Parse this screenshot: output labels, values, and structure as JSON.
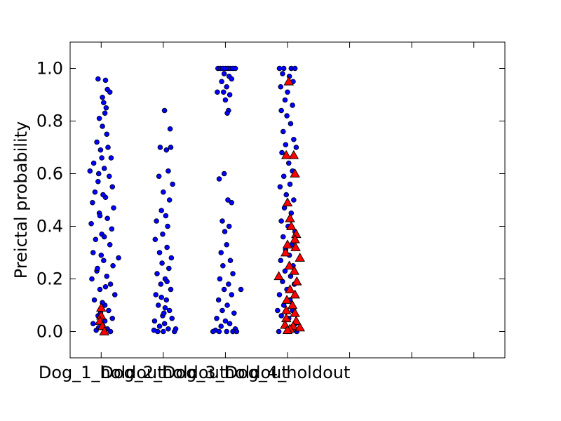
{
  "chart_data": {
    "type": "scatter",
    "title": "",
    "xlabel": "",
    "ylabel": "Preictal probability",
    "ylim": [
      -0.1,
      1.1
    ],
    "yticks": [
      0.0,
      0.2,
      0.4,
      0.6,
      0.8,
      1.0
    ],
    "ytick_labels": [
      "0.0",
      "0.2",
      "0.4",
      "0.6",
      "0.8",
      "1.0"
    ],
    "xlim": [
      0.5,
      7.5
    ],
    "categories": [
      "Dog_1_holdout",
      "Dog_2_holdout",
      "Dog_3_holdout",
      "Dog_4_holdout"
    ],
    "category_positions": [
      1,
      2,
      3,
      4
    ],
    "extra_xticks": [
      5,
      6,
      7
    ],
    "grid": false,
    "marker_colors": {
      "interictal": "#0000ff",
      "preictal": "#ff0000"
    },
    "series": [
      {
        "marker": "circle",
        "color": "#0000ff",
        "points": [
          {
            "x": 0.95,
            "y": 0.96
          },
          {
            "x": 1.07,
            "y": 0.955
          },
          {
            "x": 1.1,
            "y": 0.92
          },
          {
            "x": 1.14,
            "y": 0.91
          },
          {
            "x": 1.02,
            "y": 0.89
          },
          {
            "x": 1.04,
            "y": 0.87
          },
          {
            "x": 1.08,
            "y": 0.85
          },
          {
            "x": 0.97,
            "y": 0.81
          },
          {
            "x": 1.06,
            "y": 0.83
          },
          {
            "x": 1.02,
            "y": 0.78
          },
          {
            "x": 1.09,
            "y": 0.75
          },
          {
            "x": 0.93,
            "y": 0.72
          },
          {
            "x": 1.11,
            "y": 0.7
          },
          {
            "x": 0.99,
            "y": 0.69
          },
          {
            "x": 1.16,
            "y": 0.66
          },
          {
            "x": 0.88,
            "y": 0.64
          },
          {
            "x": 1.05,
            "y": 0.62
          },
          {
            "x": 0.82,
            "y": 0.61
          },
          {
            "x": 1.13,
            "y": 0.59
          },
          {
            "x": 0.95,
            "y": 0.57
          },
          {
            "x": 1.18,
            "y": 0.55
          },
          {
            "x": 0.9,
            "y": 0.53
          },
          {
            "x": 1.07,
            "y": 0.51
          },
          {
            "x": 0.86,
            "y": 0.49
          },
          {
            "x": 1.2,
            "y": 0.47
          },
          {
            "x": 0.97,
            "y": 0.45
          },
          {
            "x": 1.1,
            "y": 0.43
          },
          {
            "x": 0.84,
            "y": 0.41
          },
          {
            "x": 1.17,
            "y": 0.39
          },
          {
            "x": 1.01,
            "y": 0.37
          },
          {
            "x": 0.91,
            "y": 0.35
          },
          {
            "x": 1.14,
            "y": 0.33
          },
          {
            "x": 1.28,
            "y": 0.28
          },
          {
            "x": 0.87,
            "y": 0.3
          },
          {
            "x": 1.04,
            "y": 0.27
          },
          {
            "x": 1.19,
            "y": 0.25
          },
          {
            "x": 0.93,
            "y": 0.23
          },
          {
            "x": 1.09,
            "y": 0.21
          },
          {
            "x": 0.85,
            "y": 0.2
          },
          {
            "x": 1.15,
            "y": 0.18
          },
          {
            "x": 0.98,
            "y": 0.16
          },
          {
            "x": 1.22,
            "y": 0.14
          },
          {
            "x": 0.89,
            "y": 0.12
          },
          {
            "x": 1.06,
            "y": 0.1
          },
          {
            "x": 1.12,
            "y": 0.08
          },
          {
            "x": 0.95,
            "y": 0.06
          },
          {
            "x": 1.18,
            "y": 0.05
          },
          {
            "x": 0.87,
            "y": 0.03
          },
          {
            "x": 1.03,
            "y": 0.02
          },
          {
            "x": 1.1,
            "y": 0.01
          },
          {
            "x": 0.92,
            "y": 0.005
          },
          {
            "x": 1.15,
            "y": 0.0
          },
          {
            "x": 1.01,
            "y": 0.66
          },
          {
            "x": 0.96,
            "y": 0.6
          },
          {
            "x": 1.03,
            "y": 0.52
          },
          {
            "x": 0.98,
            "y": 0.44
          },
          {
            "x": 1.05,
            "y": 0.36
          },
          {
            "x": 1.0,
            "y": 0.29
          },
          {
            "x": 0.94,
            "y": 0.24
          },
          {
            "x": 1.07,
            "y": 0.17
          },
          {
            "x": 1.02,
            "y": 0.11
          },
          {
            "x": 0.99,
            "y": 0.07
          },
          {
            "x": 1.06,
            "y": 0.04
          },
          {
            "x": 0.96,
            "y": 0.015
          },
          {
            "x": 2.02,
            "y": 0.84
          },
          {
            "x": 2.11,
            "y": 0.77
          },
          {
            "x": 2.12,
            "y": 0.7
          },
          {
            "x": 1.95,
            "y": 0.7
          },
          {
            "x": 2.05,
            "y": 0.69
          },
          {
            "x": 2.08,
            "y": 0.61
          },
          {
            "x": 1.93,
            "y": 0.59
          },
          {
            "x": 2.15,
            "y": 0.56
          },
          {
            "x": 2.0,
            "y": 0.53
          },
          {
            "x": 2.1,
            "y": 0.5
          },
          {
            "x": 1.97,
            "y": 0.46
          },
          {
            "x": 2.04,
            "y": 0.44
          },
          {
            "x": 1.89,
            "y": 0.42
          },
          {
            "x": 2.07,
            "y": 0.4
          },
          {
            "x": 1.99,
            "y": 0.37
          },
          {
            "x": 1.87,
            "y": 0.35
          },
          {
            "x": 2.06,
            "y": 0.32
          },
          {
            "x": 1.94,
            "y": 0.3
          },
          {
            "x": 2.13,
            "y": 0.28
          },
          {
            "x": 1.98,
            "y": 0.26
          },
          {
            "x": 2.09,
            "y": 0.24
          },
          {
            "x": 1.9,
            "y": 0.22
          },
          {
            "x": 2.03,
            "y": 0.2
          },
          {
            "x": 1.96,
            "y": 0.18
          },
          {
            "x": 2.12,
            "y": 0.16
          },
          {
            "x": 1.88,
            "y": 0.14
          },
          {
            "x": 2.05,
            "y": 0.12
          },
          {
            "x": 1.92,
            "y": 0.1
          },
          {
            "x": 2.1,
            "y": 0.08
          },
          {
            "x": 1.99,
            "y": 0.06
          },
          {
            "x": 2.14,
            "y": 0.05
          },
          {
            "x": 1.86,
            "y": 0.04
          },
          {
            "x": 2.02,
            "y": 0.03
          },
          {
            "x": 1.94,
            "y": 0.02
          },
          {
            "x": 2.08,
            "y": 0.01
          },
          {
            "x": 1.85,
            "y": 0.005
          },
          {
            "x": 2.0,
            "y": 0.0
          },
          {
            "x": 2.18,
            "y": 0.0
          },
          {
            "x": 1.91,
            "y": 0.0
          },
          {
            "x": 2.2,
            "y": 0.01
          },
          {
            "x": 2.03,
            "y": 0.09
          },
          {
            "x": 1.97,
            "y": 0.13
          },
          {
            "x": 2.06,
            "y": 0.19
          },
          {
            "x": 2.01,
            "y": 0.07
          },
          {
            "x": 2.88,
            "y": 1.0
          },
          {
            "x": 2.92,
            "y": 1.0
          },
          {
            "x": 2.96,
            "y": 1.0
          },
          {
            "x": 3.0,
            "y": 1.0
          },
          {
            "x": 3.04,
            "y": 1.0
          },
          {
            "x": 3.08,
            "y": 1.0
          },
          {
            "x": 3.12,
            "y": 1.0
          },
          {
            "x": 3.16,
            "y": 1.0
          },
          {
            "x": 2.98,
            "y": 0.98
          },
          {
            "x": 3.06,
            "y": 0.97
          },
          {
            "x": 2.94,
            "y": 0.95
          },
          {
            "x": 3.1,
            "y": 0.96
          },
          {
            "x": 3.02,
            "y": 0.93
          },
          {
            "x": 2.97,
            "y": 0.91
          },
          {
            "x": 3.07,
            "y": 0.9
          },
          {
            "x": 2.87,
            "y": 0.91
          },
          {
            "x": 3.0,
            "y": 0.88
          },
          {
            "x": 3.05,
            "y": 0.84
          },
          {
            "x": 3.03,
            "y": 0.83
          },
          {
            "x": 2.98,
            "y": 0.6
          },
          {
            "x": 2.9,
            "y": 0.58
          },
          {
            "x": 3.04,
            "y": 0.5
          },
          {
            "x": 3.1,
            "y": 0.49
          },
          {
            "x": 2.95,
            "y": 0.42
          },
          {
            "x": 3.06,
            "y": 0.4
          },
          {
            "x": 2.99,
            "y": 0.38
          },
          {
            "x": 3.02,
            "y": 0.33
          },
          {
            "x": 2.93,
            "y": 0.3
          },
          {
            "x": 3.08,
            "y": 0.27
          },
          {
            "x": 2.96,
            "y": 0.25
          },
          {
            "x": 3.12,
            "y": 0.22
          },
          {
            "x": 2.91,
            "y": 0.2
          },
          {
            "x": 3.05,
            "y": 0.18
          },
          {
            "x": 2.98,
            "y": 0.16
          },
          {
            "x": 3.1,
            "y": 0.14
          },
          {
            "x": 2.89,
            "y": 0.12
          },
          {
            "x": 3.03,
            "y": 0.1
          },
          {
            "x": 2.95,
            "y": 0.08
          },
          {
            "x": 3.14,
            "y": 0.07
          },
          {
            "x": 2.86,
            "y": 0.05
          },
          {
            "x": 3.0,
            "y": 0.04
          },
          {
            "x": 3.07,
            "y": 0.03
          },
          {
            "x": 2.93,
            "y": 0.02
          },
          {
            "x": 3.16,
            "y": 0.01
          },
          {
            "x": 2.84,
            "y": 0.005
          },
          {
            "x": 3.02,
            "y": 0.0
          },
          {
            "x": 3.12,
            "y": 0.0
          },
          {
            "x": 2.9,
            "y": 0.0
          },
          {
            "x": 3.25,
            "y": 0.16
          },
          {
            "x": 3.18,
            "y": 0.0
          },
          {
            "x": 2.8,
            "y": 0.0
          },
          {
            "x": 3.87,
            "y": 1.0
          },
          {
            "x": 3.94,
            "y": 1.0
          },
          {
            "x": 4.06,
            "y": 1.0
          },
          {
            "x": 4.12,
            "y": 1.0
          },
          {
            "x": 3.92,
            "y": 0.98
          },
          {
            "x": 4.03,
            "y": 0.97
          },
          {
            "x": 4.09,
            "y": 0.95
          },
          {
            "x": 3.89,
            "y": 0.93
          },
          {
            "x": 4.0,
            "y": 0.91
          },
          {
            "x": 3.96,
            "y": 0.88
          },
          {
            "x": 4.08,
            "y": 0.86
          },
          {
            "x": 3.9,
            "y": 0.84
          },
          {
            "x": 3.99,
            "y": 0.82
          },
          {
            "x": 4.05,
            "y": 0.79
          },
          {
            "x": 3.93,
            "y": 0.76
          },
          {
            "x": 4.1,
            "y": 0.73
          },
          {
            "x": 3.97,
            "y": 0.71
          },
          {
            "x": 4.14,
            "y": 0.7
          },
          {
            "x": 3.91,
            "y": 0.68
          },
          {
            "x": 4.02,
            "y": 0.64
          },
          {
            "x": 4.08,
            "y": 0.61
          },
          {
            "x": 3.94,
            "y": 0.59
          },
          {
            "x": 4.04,
            "y": 0.56
          },
          {
            "x": 3.88,
            "y": 0.55
          },
          {
            "x": 3.98,
            "y": 0.52
          },
          {
            "x": 4.1,
            "y": 0.5
          },
          {
            "x": 3.95,
            "y": 0.47
          },
          {
            "x": 4.06,
            "y": 0.45
          },
          {
            "x": 3.9,
            "y": 0.42
          },
          {
            "x": 4.01,
            "y": 0.4
          },
          {
            "x": 4.12,
            "y": 0.38
          },
          {
            "x": 3.93,
            "y": 0.36
          },
          {
            "x": 4.07,
            "y": 0.33
          },
          {
            "x": 3.97,
            "y": 0.31
          },
          {
            "x": 4.03,
            "y": 0.29
          },
          {
            "x": 3.89,
            "y": 0.27
          },
          {
            "x": 4.09,
            "y": 0.25
          },
          {
            "x": 3.96,
            "y": 0.23
          },
          {
            "x": 4.05,
            "y": 0.21
          },
          {
            "x": 3.92,
            "y": 0.19
          },
          {
            "x": 4.11,
            "y": 0.18
          },
          {
            "x": 3.99,
            "y": 0.16
          },
          {
            "x": 3.87,
            "y": 0.14
          },
          {
            "x": 4.04,
            "y": 0.12
          },
          {
            "x": 3.94,
            "y": 0.1
          },
          {
            "x": 4.08,
            "y": 0.08
          },
          {
            "x": 3.9,
            "y": 0.06
          },
          {
            "x": 4.02,
            "y": 0.05
          },
          {
            "x": 4.13,
            "y": 0.03
          },
          {
            "x": 3.95,
            "y": 0.02
          },
          {
            "x": 4.07,
            "y": 0.01
          },
          {
            "x": 3.86,
            "y": 0.0
          },
          {
            "x": 4.0,
            "y": 0.0
          },
          {
            "x": 4.15,
            "y": 0.0
          },
          {
            "x": 3.84,
            "y": 0.08
          }
        ]
      },
      {
        "marker": "triangle",
        "color": "#ff0000",
        "points": [
          {
            "x": 1.0,
            "y": 0.09
          },
          {
            "x": 1.0,
            "y": 0.06
          },
          {
            "x": 0.98,
            "y": 0.04
          },
          {
            "x": 1.02,
            "y": 0.02
          },
          {
            "x": 1.05,
            "y": 0.0
          },
          {
            "x": 4.02,
            "y": 0.95
          },
          {
            "x": 3.98,
            "y": 0.67
          },
          {
            "x": 4.1,
            "y": 0.67
          },
          {
            "x": 4.12,
            "y": 0.6
          },
          {
            "x": 4.0,
            "y": 0.49
          },
          {
            "x": 4.04,
            "y": 0.43
          },
          {
            "x": 4.06,
            "y": 0.4
          },
          {
            "x": 4.14,
            "y": 0.37
          },
          {
            "x": 4.12,
            "y": 0.35
          },
          {
            "x": 4.0,
            "y": 0.33
          },
          {
            "x": 4.13,
            "y": 0.32
          },
          {
            "x": 3.97,
            "y": 0.3
          },
          {
            "x": 4.2,
            "y": 0.28
          },
          {
            "x": 4.03,
            "y": 0.25
          },
          {
            "x": 4.11,
            "y": 0.23
          },
          {
            "x": 3.86,
            "y": 0.21
          },
          {
            "x": 4.15,
            "y": 0.19
          },
          {
            "x": 4.04,
            "y": 0.16
          },
          {
            "x": 4.12,
            "y": 0.14
          },
          {
            "x": 3.99,
            "y": 0.12
          },
          {
            "x": 4.08,
            "y": 0.1
          },
          {
            "x": 3.98,
            "y": 0.08
          },
          {
            "x": 4.12,
            "y": 0.07
          },
          {
            "x": 3.98,
            "y": 0.05
          },
          {
            "x": 4.14,
            "y": 0.04
          },
          {
            "x": 3.96,
            "y": 0.025
          },
          {
            "x": 4.09,
            "y": 0.02
          },
          {
            "x": 4.2,
            "y": 0.015
          },
          {
            "x": 4.04,
            "y": 0.01
          },
          {
            "x": 4.0,
            "y": 0.005
          }
        ]
      }
    ]
  }
}
